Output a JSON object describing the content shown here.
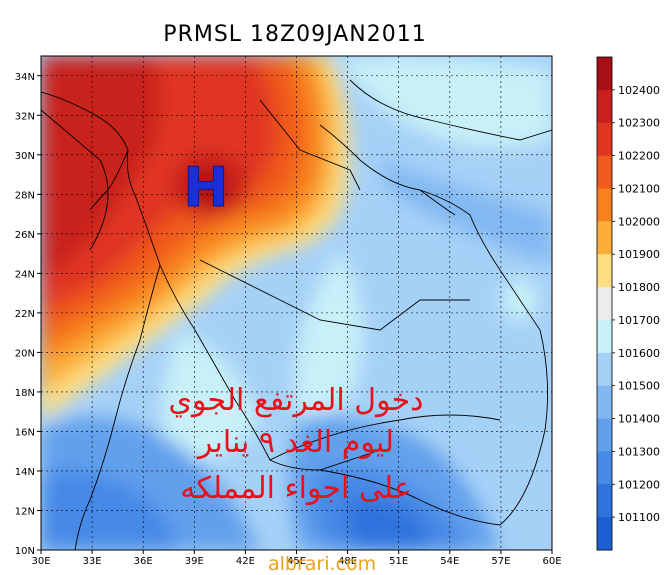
{
  "title": "PRMSL 18Z09JAN2011",
  "high_marker": "H",
  "annotation_lines": [
    "دخول المرتفع الجوي",
    "ليوم الغد ٩ يناير",
    "على اجواء المملكه"
  ],
  "credit": "albrari.com",
  "colors": {
    "annotation": "#e8101a",
    "high_marker": "#1a2fd6",
    "credit": "#f0a020"
  },
  "map": {
    "lon_range": [
      30,
      60
    ],
    "lat_range": [
      10,
      35
    ],
    "x_ticks": [
      "30E",
      "33E",
      "36E",
      "39E",
      "42E",
      "45E",
      "48E",
      "51E",
      "54E",
      "57E",
      "60E"
    ],
    "y_ticks": [
      "10N",
      "12N",
      "14N",
      "16N",
      "18N",
      "20N",
      "22N",
      "24N",
      "26N",
      "28N",
      "30N",
      "32N",
      "34N"
    ]
  },
  "colorbar": {
    "labels": [
      "102400",
      "102300",
      "102200",
      "102100",
      "102000",
      "101900",
      "101800",
      "101700",
      "101600",
      "101500",
      "101400",
      "101300",
      "101200",
      "101100"
    ],
    "colors": [
      "#a50f15",
      "#c8201c",
      "#e03520",
      "#f05a1e",
      "#f7801f",
      "#fbad38",
      "#fedd80",
      "#ececec",
      "#c8f0f8",
      "#a6d1f7",
      "#82b8f2",
      "#62a0ec",
      "#4689e6",
      "#2e72dc",
      "#1b5fd3"
    ]
  }
}
